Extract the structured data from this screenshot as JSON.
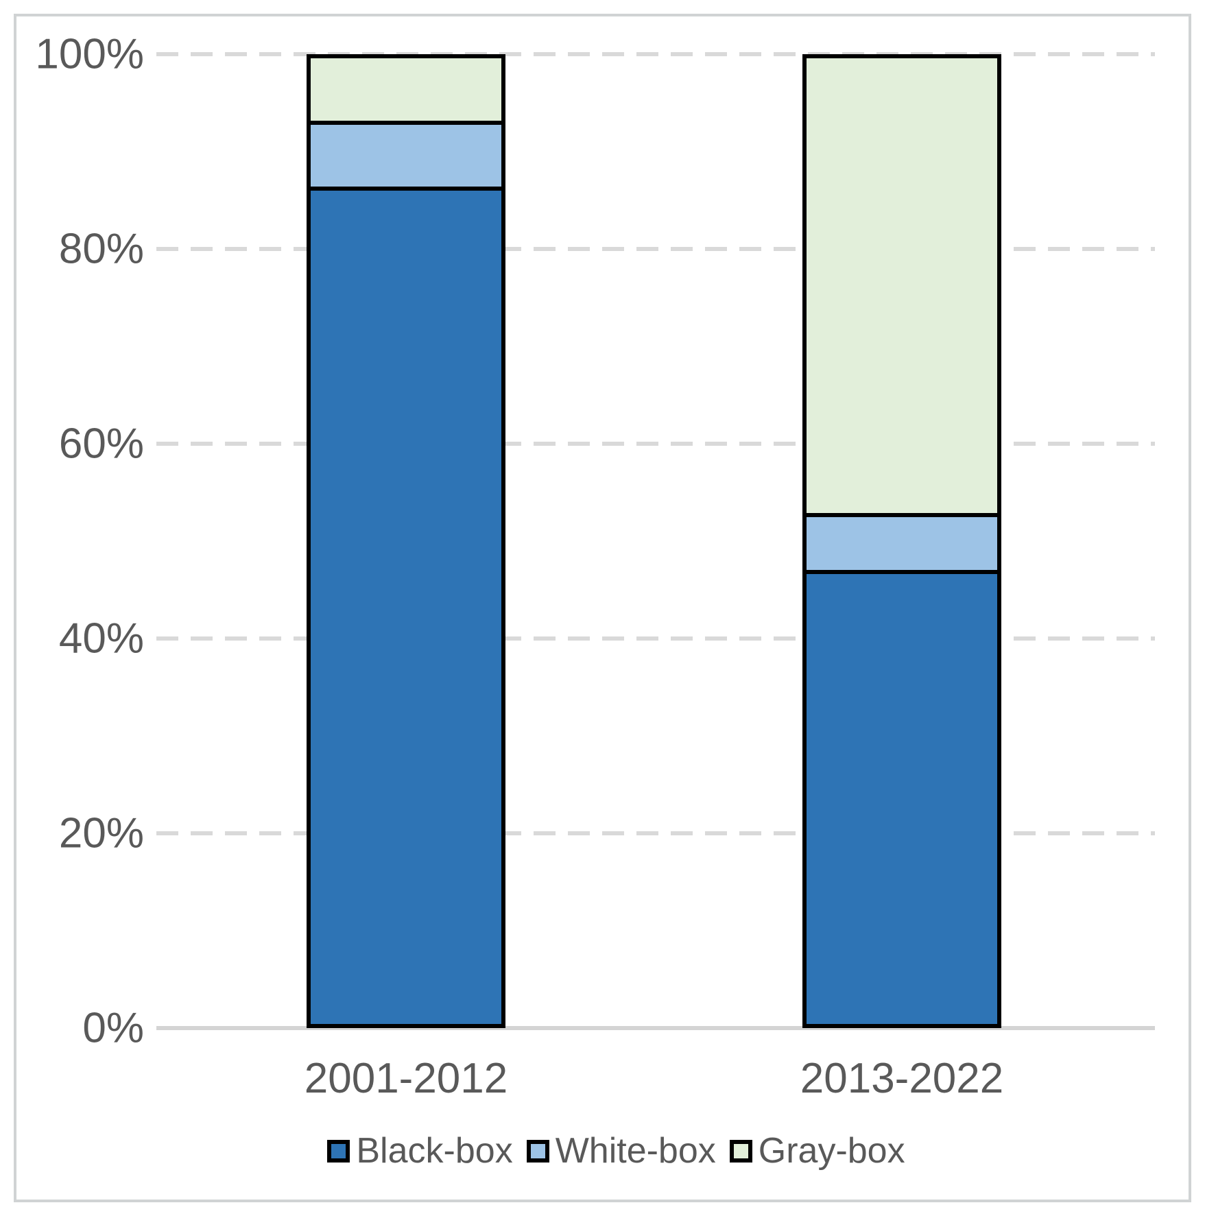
{
  "chart_data": {
    "type": "bar",
    "stacked": true,
    "orientation": "vertical",
    "categories": [
      "2001-2012",
      "2013-2022"
    ],
    "series": [
      {
        "name": "Black-box",
        "color": "#2e74b5",
        "values": [
          87,
          47
        ]
      },
      {
        "name": "White-box",
        "color": "#9dc3e6",
        "values": [
          6.5,
          5.5
        ]
      },
      {
        "name": "Gray-box",
        "color": "#e2efda",
        "values": [
          6.5,
          47.5
        ]
      }
    ],
    "y_axis": {
      "tick_labels": [
        "0%",
        "20%",
        "40%",
        "60%",
        "80%",
        "100%"
      ],
      "tick_values": [
        0,
        20,
        40,
        60,
        80,
        100
      ],
      "min": 0,
      "max": 100,
      "grid": "dashed"
    },
    "legend": {
      "position": "bottom",
      "entries": [
        "Black-box",
        "White-box",
        "Gray-box"
      ]
    },
    "title": "",
    "xlabel": "",
    "ylabel": ""
  },
  "palette": {
    "text": "#595959",
    "gridline": "#d9d9d9",
    "axis_line": "#d4d4d4",
    "bar_border": "#000000",
    "frame_border": "#d0d3d4",
    "background": "#ffffff"
  }
}
